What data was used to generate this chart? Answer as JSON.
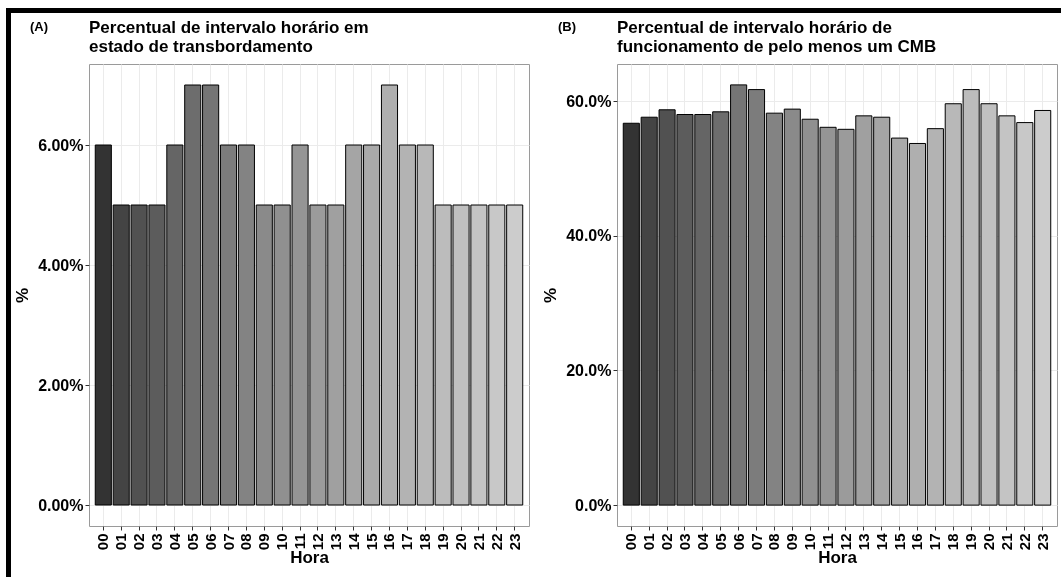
{
  "chart_data": [
    {
      "type": "bar",
      "title": "Percentual de intervalo horário em\nestado de transbordamento",
      "annotations": [
        "(A)"
      ],
      "xlabel": "Hora",
      "ylabel": "%",
      "categories": [
        "00",
        "01",
        "02",
        "03",
        "04",
        "05",
        "06",
        "07",
        "08",
        "09",
        "10",
        "11",
        "12",
        "13",
        "14",
        "15",
        "16",
        "17",
        "18",
        "19",
        "20",
        "21",
        "22",
        "23"
      ],
      "values": [
        6,
        5,
        5,
        5,
        6,
        7,
        7,
        6,
        6,
        5,
        5,
        6,
        5,
        5,
        6,
        6,
        7,
        6,
        6,
        5,
        5,
        5,
        5,
        5
      ],
      "colors": [
        "#333333",
        "#444444",
        "#515151",
        "#5c5c5c",
        "#656565",
        "#6d6d6d",
        "#757575",
        "#7c7c7c",
        "#838383",
        "#8a8a8a",
        "#909090",
        "#959595",
        "#9b9b9b",
        "#a0a0a0",
        "#a5a5a5",
        "#aaaaaa",
        "#afafaf",
        "#b3b3b3",
        "#b8b8b8",
        "#bcbcbc",
        "#c0c0c0",
        "#c4c4c4",
        "#c8c8c8",
        "#cccccc"
      ],
      "ylim": [
        -0.35,
        7.35
      ],
      "yticks": [
        {
          "value": 0,
          "label": "0.00%"
        },
        {
          "value": 2,
          "label": "2.00%"
        },
        {
          "value": 4,
          "label": "4.00%"
        },
        {
          "value": 6,
          "label": "6.00%"
        }
      ],
      "grid": true
    },
    {
      "type": "bar",
      "title": "Percentual de intervalo horário de\nfuncionamento de pelo menos um CMB",
      "annotations": [
        "(B)"
      ],
      "xlabel": "Hora",
      "ylabel": "%",
      "categories": [
        "00",
        "01",
        "02",
        "03",
        "04",
        "05",
        "06",
        "07",
        "08",
        "09",
        "10",
        "11",
        "12",
        "13",
        "14",
        "15",
        "16",
        "17",
        "18",
        "19",
        "20",
        "21",
        "22",
        "23"
      ],
      "values": [
        56.7,
        57.6,
        58.7,
        58.0,
        58.0,
        58.4,
        62.4,
        61.7,
        58.2,
        58.8,
        57.3,
        56.1,
        55.8,
        57.8,
        57.6,
        54.5,
        53.7,
        55.9,
        59.6,
        61.7,
        59.6,
        57.8,
        56.8,
        58.6
      ],
      "colors": [
        "#333333",
        "#444444",
        "#515151",
        "#5c5c5c",
        "#656565",
        "#6d6d6d",
        "#757575",
        "#7c7c7c",
        "#838383",
        "#8a8a8a",
        "#909090",
        "#959595",
        "#9b9b9b",
        "#a0a0a0",
        "#a5a5a5",
        "#aaaaaa",
        "#afafaf",
        "#b3b3b3",
        "#b8b8b8",
        "#bcbcbc",
        "#c0c0c0",
        "#c4c4c4",
        "#c8c8c8",
        "#cccccc"
      ],
      "ylim": [
        -3.1,
        65.5
      ],
      "yticks": [
        {
          "value": 0,
          "label": "0.0%"
        },
        {
          "value": 20,
          "label": "20.0%"
        },
        {
          "value": 40,
          "label": "40.0%"
        },
        {
          "value": 60,
          "label": "60.0%"
        }
      ],
      "grid": true
    }
  ]
}
